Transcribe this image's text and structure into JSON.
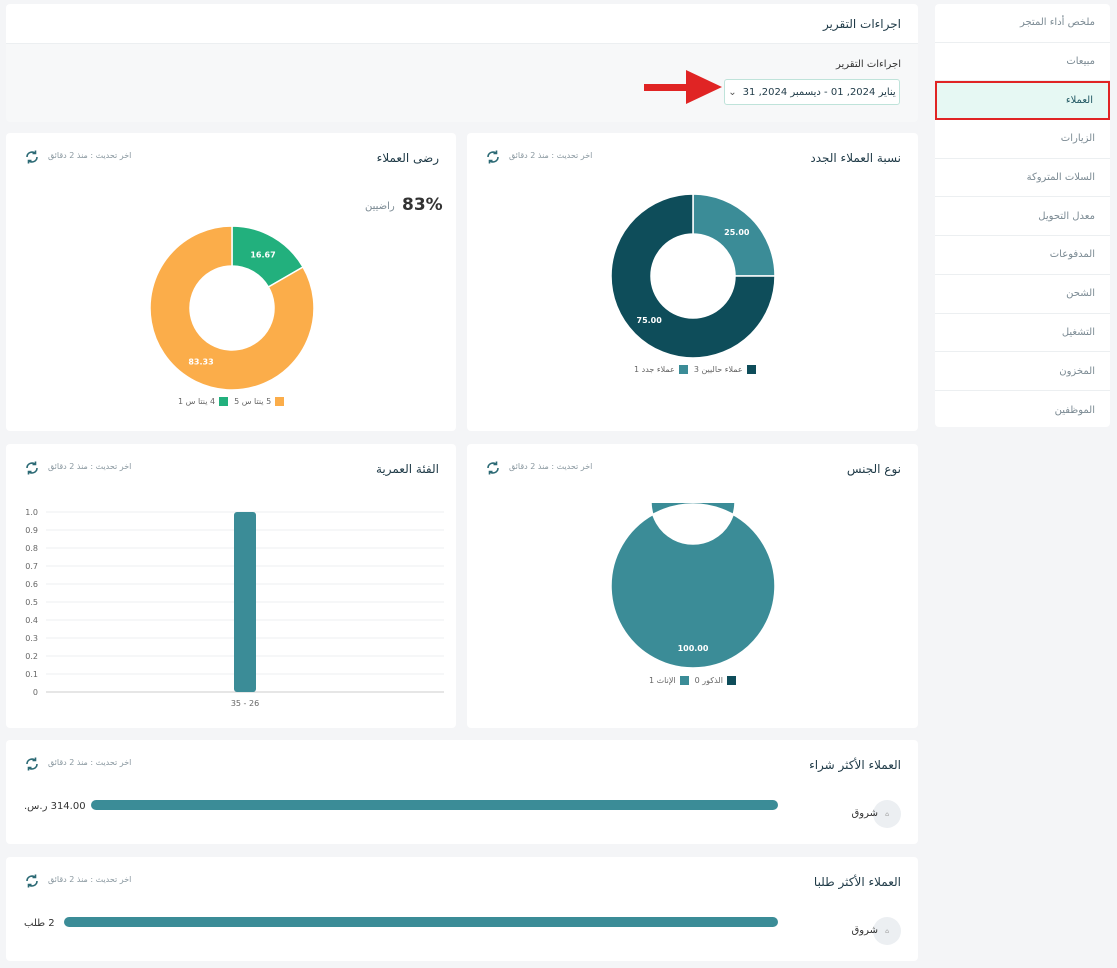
{
  "sidebar": {
    "items": [
      {
        "label": "ملخص أداء المتجر",
        "active": false
      },
      {
        "label": "مبيعات",
        "active": false
      },
      {
        "label": "العملاء",
        "active": true
      },
      {
        "label": "الزيارات",
        "active": false
      },
      {
        "label": "السلات المتروكة",
        "active": false
      },
      {
        "label": "معدل التحويل",
        "active": false
      },
      {
        "label": "المدفوعات",
        "active": false
      },
      {
        "label": "الشحن",
        "active": false
      },
      {
        "label": "التشغيل",
        "active": false
      },
      {
        "label": "المخزون",
        "active": false
      },
      {
        "label": "الموظفين",
        "active": false
      }
    ]
  },
  "report_actions": {
    "title": "اجراءات التقرير",
    "field_label": "اجراءات التقرير",
    "date_range": "يناير 2024, 01 - ديسمبر 2024, 31"
  },
  "common": {
    "last_update": "اخر تحديث : منذ 2 دقائق",
    "refresh_icon": "refresh-icon"
  },
  "new_customers": {
    "title": "نسبة العملاء الجدد",
    "chart_data": {
      "type": "pie",
      "slices": [
        {
          "label": "عملاء جدد 1",
          "value": 25.0,
          "color": "#3b8c97"
        },
        {
          "label": "عملاء حاليين 3",
          "value": 75.0,
          "color": "#0e4d5a"
        }
      ]
    }
  },
  "satisfaction": {
    "title": "رضى العملاء",
    "percent": "83%",
    "percent_label": "راضيين",
    "chart_data": {
      "type": "pie",
      "slices": [
        {
          "label": "4 ينتا س 1",
          "value": 16.67,
          "color": "#22b07d"
        },
        {
          "label": "5 ينتا س 5",
          "value": 83.33,
          "color": "#fbad4a"
        }
      ]
    }
  },
  "gender": {
    "title": "نوع الجنس",
    "chart_data": {
      "type": "pie",
      "slices": [
        {
          "label": "الإناث 1",
          "value": 100.0,
          "color": "#3b8c97"
        },
        {
          "label": "الذكور 0",
          "value": 0.0,
          "color": "#0e4d5a"
        }
      ]
    }
  },
  "age_group": {
    "title": "الفئة العمرية",
    "chart_data": {
      "type": "bar",
      "categories": [
        "35 - 26"
      ],
      "values": [
        1.0
      ],
      "ylim": [
        0,
        1.0
      ],
      "yticks": [
        "0",
        "0.1",
        "0.2",
        "0.3",
        "0.4",
        "0.5",
        "0.6",
        "0.7",
        "0.8",
        "0.9",
        "1.0"
      ],
      "color": "#3b8c97"
    }
  },
  "top_buyers": {
    "title": "العملاء الأكثر شراء",
    "rows": [
      {
        "name": "شروق",
        "value": "314.00 ر.س.",
        "fraction": 1.0
      }
    ]
  },
  "top_orders": {
    "title": "العملاء الأكثر طلبا",
    "rows": [
      {
        "name": "شروق",
        "value": "2 طلب",
        "fraction": 1.0
      }
    ]
  },
  "colors": {
    "accent": "#3b8c97",
    "dark": "#0e4d5a",
    "green": "#22b07d",
    "orange": "#fbad4a",
    "highlight": "#e02424"
  }
}
